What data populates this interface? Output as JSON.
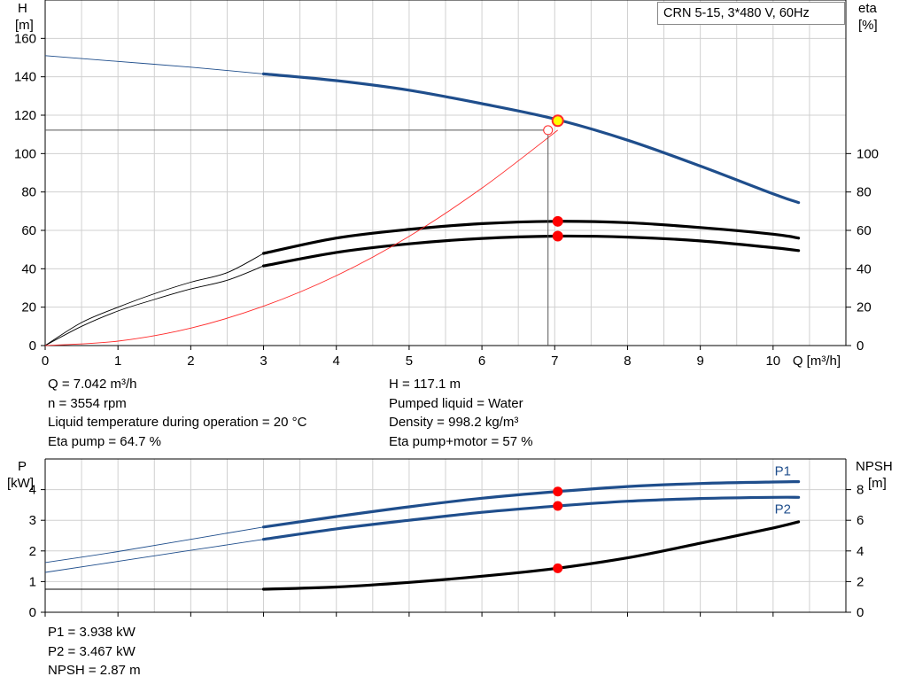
{
  "chart_data": [
    {
      "type": "line",
      "name_box": "CRN 5-15, 3*480 V, 60Hz",
      "xlabel": "Q [m³/h]",
      "ylabel_left": [
        "H",
        "[m]"
      ],
      "ylabel_right": [
        "eta",
        "[%]"
      ],
      "xlim": [
        0,
        11
      ],
      "ylim_left": [
        0,
        180
      ],
      "ylim_right": [
        0,
        180
      ],
      "x_ticks": [
        "0",
        "1",
        "2",
        "3",
        "4",
        "5",
        "6",
        "7",
        "8",
        "9",
        "10"
      ],
      "y_ticks_left": [
        "0",
        "20",
        "40",
        "60",
        "80",
        "100",
        "120",
        "140",
        "160"
      ],
      "y_ticks_right": [
        "0",
        "20",
        "40",
        "60",
        "80",
        "100"
      ],
      "grid": true,
      "series": [
        {
          "id": "H",
          "color": "#1f4e8c",
          "axis": "left",
          "x_thin": [
            0,
            1,
            2,
            3
          ],
          "y_thin": [
            151,
            148,
            145,
            141.5
          ],
          "x": [
            3,
            4,
            5,
            6,
            7,
            8,
            9,
            10,
            10.35
          ],
          "y": [
            141.5,
            138,
            133,
            126,
            118,
            107,
            93.5,
            79,
            74.5
          ]
        },
        {
          "id": "Eta pump",
          "color": "#000000",
          "axis": "right",
          "x_thin": [
            0,
            0.5,
            1,
            1.5,
            2,
            2.5,
            3
          ],
          "y_thin": [
            0,
            12,
            20,
            27,
            33,
            38,
            48
          ],
          "x": [
            3,
            4,
            5,
            6,
            7,
            8,
            9,
            10,
            10.35
          ],
          "y": [
            48,
            56,
            60.5,
            63.5,
            64.7,
            64,
            61.5,
            58,
            56
          ]
        },
        {
          "id": "Eta pump+motor",
          "color": "#000000",
          "axis": "right",
          "x_thin": [
            0,
            0.5,
            1,
            1.5,
            2,
            2.5,
            3
          ],
          "y_thin": [
            0,
            10,
            18,
            24,
            29.5,
            34,
            41.5
          ],
          "x": [
            3,
            4,
            5,
            6,
            7,
            8,
            9,
            10,
            10.35
          ],
          "y": [
            41.5,
            48.5,
            53,
            55.8,
            57,
            56.5,
            54.5,
            51,
            49.5
          ]
        },
        {
          "id": "System curve",
          "color": "#ff2a2a",
          "axis": "left",
          "thin_only": true,
          "x_thin": [
            0,
            1,
            2,
            3,
            4,
            5,
            6,
            7.042
          ],
          "y_thin": [
            0,
            2.3,
            9.1,
            20.5,
            36.4,
            56.9,
            82,
            112.2
          ]
        }
      ],
      "operating_point": {
        "x": 7.042,
        "y": 117.1,
        "eta_pump": 64.7,
        "eta_total": 57,
        "system_y": 112.2
      },
      "info_left": [
        "Q = 7.042 m³/h",
        "n = 3554 rpm",
        "Liquid temperature during operation = 20 °C",
        "Eta pump = 64.7 %"
      ],
      "info_right": [
        "H = 117.1 m",
        "Pumped liquid = Water",
        "Density = 998.2 kg/m³",
        "Eta pump+motor = 57 %"
      ]
    },
    {
      "type": "line",
      "ylabel_left": [
        "P",
        "[kW]"
      ],
      "ylabel_right": [
        "NPSH",
        "[m]"
      ],
      "xlim": [
        0,
        11
      ],
      "ylim_left": [
        0,
        5
      ],
      "ylim_right": [
        0,
        10
      ],
      "y_ticks_left": [
        "0",
        "1",
        "2",
        "3",
        "4"
      ],
      "y_ticks_right": [
        "0",
        "2",
        "4",
        "6",
        "8"
      ],
      "grid": true,
      "series": [
        {
          "id": "P1",
          "name": "P1",
          "color": "#1f4e8c",
          "axis": "left",
          "x_thin": [
            0,
            1,
            2,
            3
          ],
          "y_thin": [
            1.62,
            1.98,
            2.38,
            2.78
          ],
          "x": [
            3,
            4,
            5,
            6,
            7,
            8,
            9,
            10,
            10.35
          ],
          "y": [
            2.78,
            3.12,
            3.44,
            3.72,
            3.93,
            4.1,
            4.2,
            4.25,
            4.26
          ]
        },
        {
          "id": "P2",
          "name": "P2",
          "color": "#1f4e8c",
          "axis": "left",
          "x_thin": [
            0,
            1,
            2,
            3
          ],
          "y_thin": [
            1.3,
            1.66,
            2.02,
            2.38
          ],
          "x": [
            3,
            4,
            5,
            6,
            7,
            8,
            9,
            10,
            10.35
          ],
          "y": [
            2.38,
            2.72,
            3.0,
            3.26,
            3.46,
            3.62,
            3.71,
            3.75,
            3.75
          ]
        },
        {
          "id": "NPSH",
          "color": "#000000",
          "axis": "right",
          "x_thin": [
            0,
            1,
            2,
            3
          ],
          "y_thin": [
            1.5,
            1.5,
            1.5,
            1.5
          ],
          "x": [
            3,
            4,
            5,
            6,
            7,
            8,
            9,
            10,
            10.35
          ],
          "y": [
            1.5,
            1.65,
            1.95,
            2.35,
            2.85,
            3.55,
            4.5,
            5.5,
            5.9
          ]
        }
      ],
      "operating_point": {
        "x": 7.042,
        "P1": 3.938,
        "P2": 3.467,
        "NPSH": 2.87
      },
      "info_left": [
        "P1 = 3.938 kW",
        "P2 = 3.467 kW",
        "NPSH = 2.87 m"
      ]
    }
  ]
}
